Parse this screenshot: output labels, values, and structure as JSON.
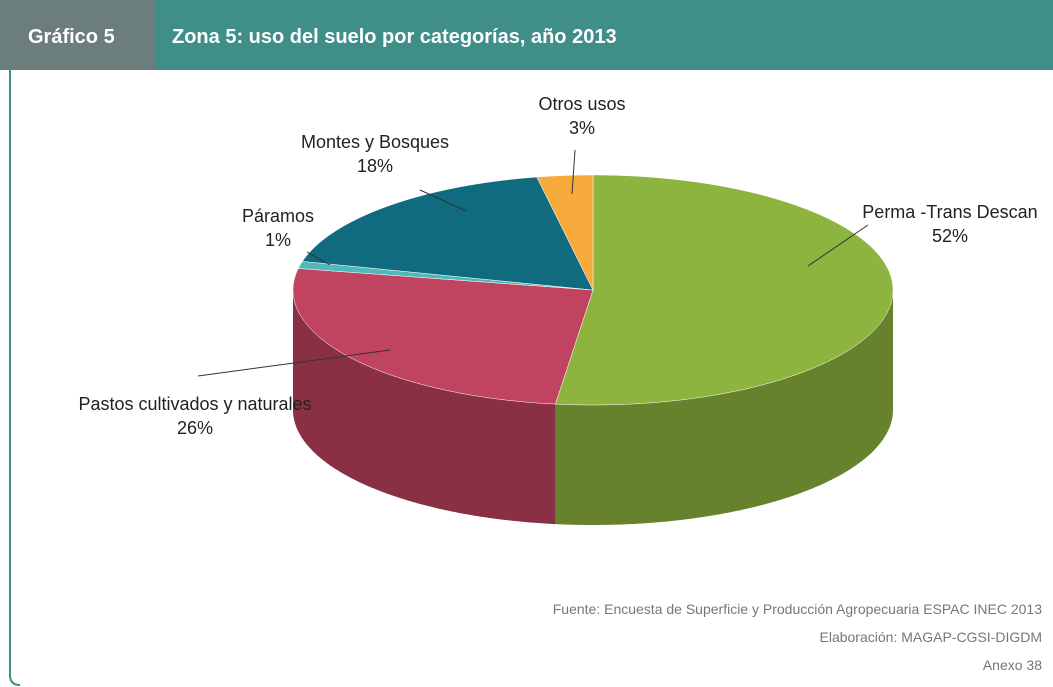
{
  "chart_data": {
    "type": "pie3d",
    "label": "Gráfico 5",
    "title": "Zona 5: uso del suelo por categorías, año 2013",
    "categories": [
      "Perma -Trans Descan",
      "Pastos cultivados y naturales",
      "Páramos",
      "Montes y Bosques",
      "Otros usos"
    ],
    "values": [
      52,
      26,
      1,
      18,
      3
    ],
    "value_labels": [
      "52%",
      "26%",
      "1%",
      "18%",
      "3%"
    ],
    "colors": [
      "#8db43e",
      "#c0435f",
      "#4fb8b8",
      "#106a80",
      "#f6ab3c"
    ],
    "source": [
      "Fuente: Encuesta de Superficie y Producción Agropecuaria ESPAC INEC 2013",
      "Elaboración: MAGAP-CGSI-DIGDM",
      "Anexo 38"
    ]
  }
}
